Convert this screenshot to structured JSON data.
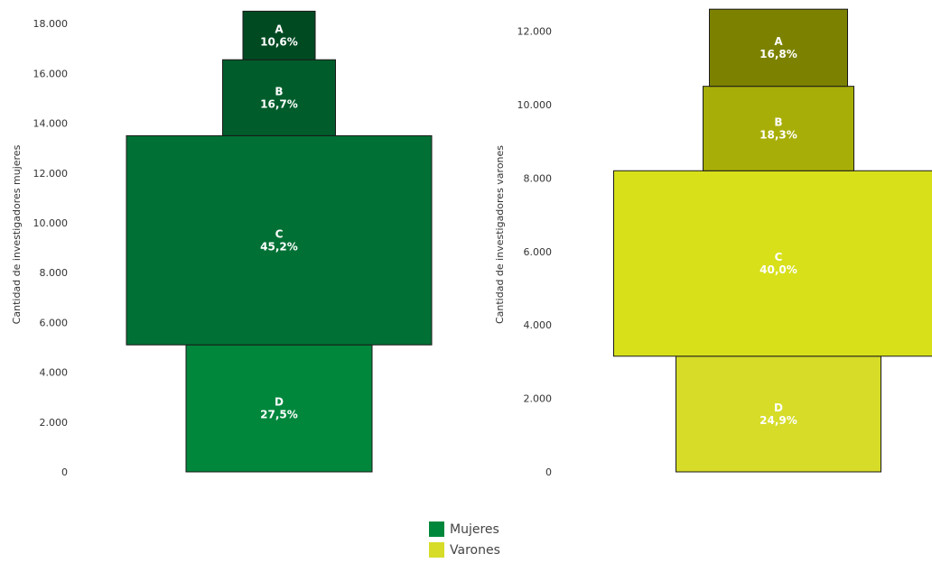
{
  "chart_data": [
    {
      "type": "pyramid",
      "ylabel": "Cantidad de investigadores mujeres",
      "ylim": [
        0,
        18000
      ],
      "yticks": [
        "0",
        "2.000",
        "4.000",
        "6.000",
        "8.000",
        "10.000",
        "12.000",
        "14.000",
        "16.000",
        "18.000"
      ],
      "ytick_values": [
        0,
        2000,
        4000,
        6000,
        8000,
        10000,
        12000,
        14000,
        16000,
        18000
      ],
      "segments": [
        {
          "letter": "D",
          "label": "27,5%",
          "percent": 27.5,
          "start": 0,
          "end": 5100,
          "color": "#00873c"
        },
        {
          "letter": "C",
          "label": "45,2%",
          "percent": 45.2,
          "start": 5100,
          "end": 13500,
          "color": "#007034"
        },
        {
          "letter": "B",
          "label": "16,7%",
          "percent": 16.7,
          "start": 13500,
          "end": 16550,
          "color": "#005d2b"
        },
        {
          "letter": "A",
          "label": "10,6%",
          "percent": 10.6,
          "start": 16550,
          "end": 18500,
          "color": "#004a22"
        }
      ]
    },
    {
      "type": "pyramid",
      "ylabel": "Cantidad de investigadores varones",
      "ylim": [
        0,
        12000
      ],
      "yticks": [
        "0",
        "2.000",
        "4.000",
        "6.000",
        "8.000",
        "10.000",
        "12.000"
      ],
      "ytick_values": [
        0,
        2000,
        4000,
        6000,
        8000,
        10000,
        12000
      ],
      "segments": [
        {
          "letter": "D",
          "label": "24,9%",
          "percent": 24.9,
          "start": 0,
          "end": 3150,
          "color": "#d6dc28"
        },
        {
          "letter": "C",
          "label": "40,0%",
          "percent": 40.0,
          "start": 3150,
          "end": 8200,
          "color": "#d8e01a"
        },
        {
          "letter": "B",
          "label": "18,3%",
          "percent": 18.3,
          "start": 8200,
          "end": 10500,
          "color": "#a8ae08"
        },
        {
          "letter": "A",
          "label": "16,8%",
          "percent": 16.8,
          "start": 10500,
          "end": 12600,
          "color": "#7c8200"
        }
      ]
    }
  ],
  "legend": [
    {
      "label": "Mujeres",
      "color": "#00873c"
    },
    {
      "label": "Varones",
      "color": "#d6dc28"
    }
  ]
}
